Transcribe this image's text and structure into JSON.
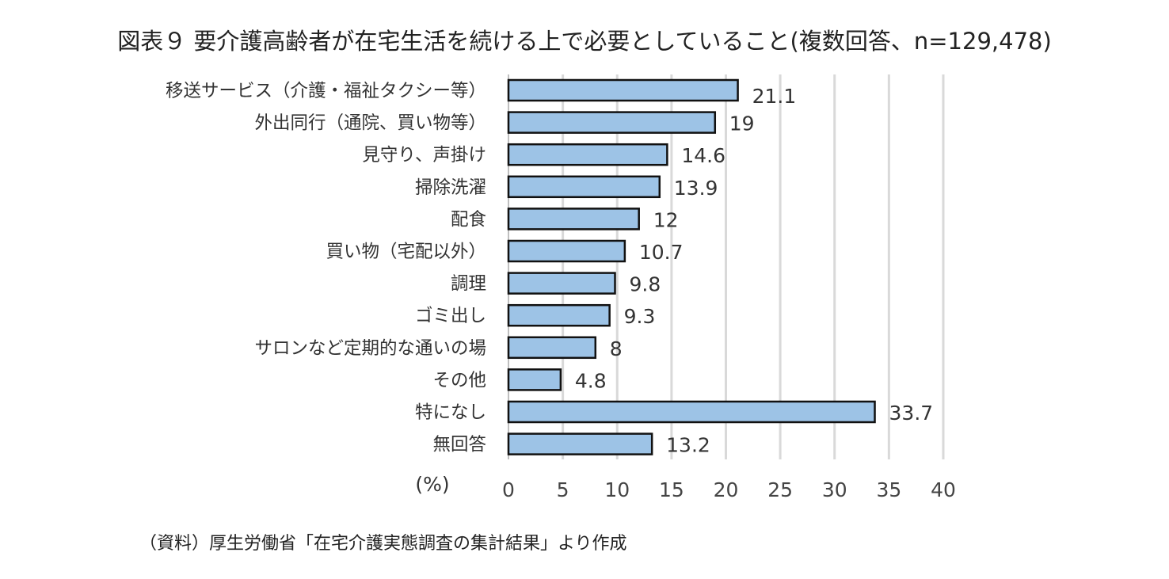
{
  "chart_data": {
    "type": "bar",
    "orientation": "horizontal",
    "title": "図表９ 要介護高齢者が在宅生活を続ける上で必要としていること(複数回答、n=129,478)",
    "categories": [
      "移送サービス（介護・福祉タクシー等）",
      "外出同行（通院、買い物等）",
      "見守り、声掛け",
      "掃除洗濯",
      "配食",
      "買い物（宅配以外）",
      "調理",
      "ゴミ出し",
      "サロンなど定期的な通いの場",
      "その他",
      "特になし",
      "無回答"
    ],
    "values": [
      21.1,
      19,
      14.6,
      13.9,
      12,
      10.7,
      9.8,
      9.3,
      8,
      4.8,
      33.7,
      13.2
    ],
    "value_labels": [
      "21.1",
      "19",
      "14.6",
      "13.9",
      "12",
      "10.7",
      "9.8",
      "9.3",
      "8",
      "4.8",
      "33.7",
      "13.2"
    ],
    "xlim": [
      0,
      40
    ],
    "x_ticks": [
      0,
      5,
      10,
      15,
      20,
      25,
      30,
      35,
      40
    ],
    "unit_label": "(%)",
    "grid": "vertical",
    "bar_color": "#9dc3e6",
    "bar_edge_color": "#111111",
    "grid_color": "#d9d9d9"
  },
  "source_note": "（資料）厚生労働省「在宅介護実態調査の集計結果」より作成"
}
